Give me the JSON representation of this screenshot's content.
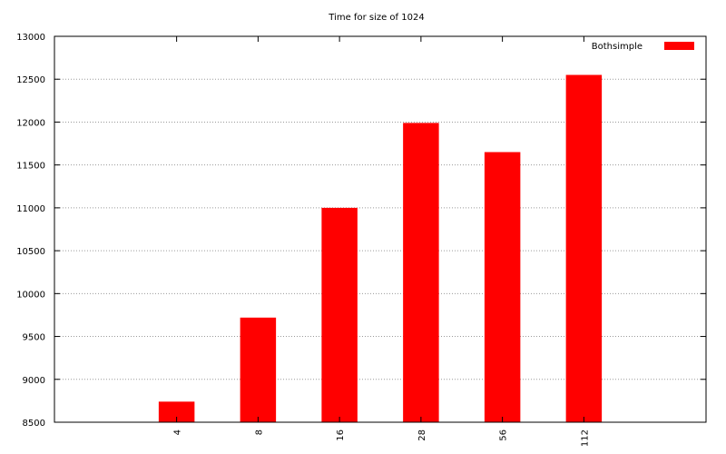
{
  "chart_data": {
    "type": "bar",
    "title": "Time for size of 1024",
    "xlabel": "",
    "ylabel": "",
    "categories": [
      "4",
      "8",
      "16",
      "28",
      "56",
      "112"
    ],
    "series": [
      {
        "name": "Bothsimple",
        "color": "#ff0000",
        "values": [
          8740,
          9720,
          11000,
          11990,
          11650,
          12550
        ]
      }
    ],
    "ylim": [
      8500,
      13000
    ],
    "yticks": [
      8500,
      9000,
      9500,
      10000,
      10500,
      11000,
      11500,
      12000,
      12500,
      13000
    ],
    "grid": true,
    "legend_position": "top-right"
  }
}
